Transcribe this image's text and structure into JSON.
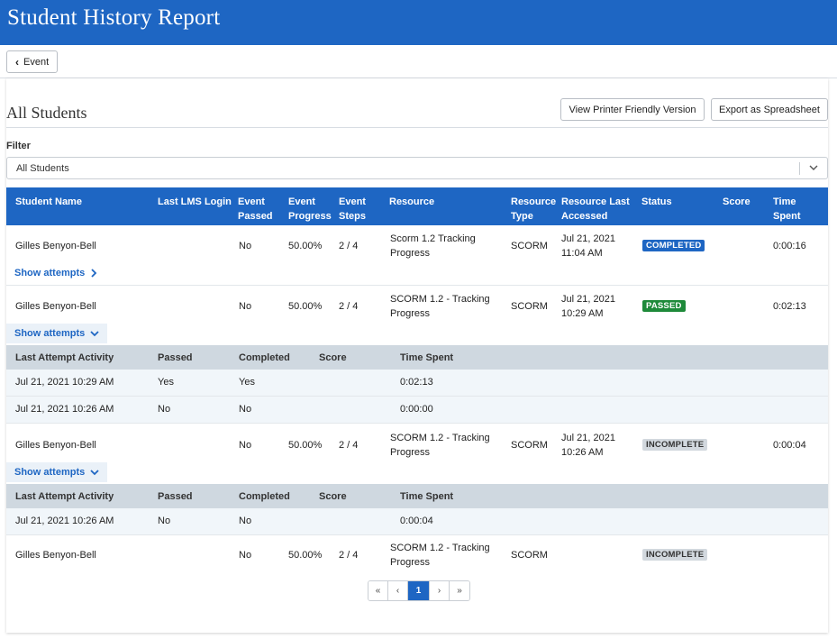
{
  "header": {
    "title": "Student History Report"
  },
  "toolbar": {
    "back_label": "Event"
  },
  "section": {
    "title": "All Students",
    "print_label": "View Printer Friendly Version",
    "export_label": "Export as Spreadsheet"
  },
  "filter": {
    "label": "Filter",
    "value": "All Students"
  },
  "table": {
    "headers": {
      "student_name": "Student Name",
      "last_login": "Last LMS Login",
      "event_passed_1": "Event",
      "event_passed_2": "Passed",
      "event_progress_1": "Event",
      "event_progress_2": "Progress",
      "event_steps_1": "Event",
      "event_steps_2": "Steps",
      "resource": "Resource",
      "resource_type_1": "Resource",
      "resource_type_2": "Type",
      "resource_last_1": "Resource Last",
      "resource_last_2": "Accessed",
      "status": "Status",
      "score": "Score",
      "time_spent_1": "Time",
      "time_spent_2": "Spent"
    },
    "rows": [
      {
        "student": "Gilles Benyon-Bell",
        "last_login": "",
        "passed": "No",
        "progress": "50.00%",
        "steps": "2 / 4",
        "resource_1": "Scorm 1.2 Tracking",
        "resource_2": "Progress",
        "type": "SCORM",
        "accessed_1": "Jul 21, 2021",
        "accessed_2": "11:04 AM",
        "status": "COMPLETED",
        "score": "",
        "time": "0:00:16",
        "attempts_label": "Show attempts"
      },
      {
        "student": "Gilles Benyon-Bell",
        "last_login": "",
        "passed": "No",
        "progress": "50.00%",
        "steps": "2 / 4",
        "resource_1": "SCORM 1.2 - Tracking",
        "resource_2": "Progress",
        "type": "SCORM",
        "accessed_1": "Jul 21, 2021",
        "accessed_2": "10:29 AM",
        "status": "PASSED",
        "score": "",
        "time": "0:02:13",
        "attempts_label": "Show attempts"
      },
      {
        "student": "Gilles Benyon-Bell",
        "last_login": "",
        "passed": "No",
        "progress": "50.00%",
        "steps": "2 / 4",
        "resource_1": "SCORM 1.2 - Tracking",
        "resource_2": "Progress",
        "type": "SCORM",
        "accessed_1": "Jul 21, 2021",
        "accessed_2": "10:26 AM",
        "status": "INCOMPLETE",
        "score": "",
        "time": "0:00:04",
        "attempts_label": "Show attempts"
      },
      {
        "student": "Gilles Benyon-Bell",
        "last_login": "",
        "passed": "No",
        "progress": "50.00%",
        "steps": "2 / 4",
        "resource_1": "SCORM 1.2 - Tracking",
        "resource_2": "Progress",
        "type": "SCORM",
        "accessed_1": "",
        "accessed_2": "",
        "status": "INCOMPLETE",
        "score": "",
        "time": ""
      }
    ],
    "attempt_headers": {
      "activity": "Last Attempt Activity",
      "passed": "Passed",
      "completed": "Completed",
      "score": "Score",
      "time": "Time Spent"
    },
    "attempts_row2": [
      {
        "activity": "Jul 21, 2021 10:29 AM",
        "passed": "Yes",
        "completed": "Yes",
        "score": "",
        "time": "0:02:13"
      },
      {
        "activity": "Jul 21, 2021 10:26 AM",
        "passed": "No",
        "completed": "No",
        "score": "",
        "time": "0:00:00"
      }
    ],
    "attempts_row3": [
      {
        "activity": "Jul 21, 2021 10:26 AM",
        "passed": "No",
        "completed": "No",
        "score": "",
        "time": "0:00:04"
      }
    ]
  },
  "pagination": {
    "first": "«",
    "prev": "‹",
    "current": "1",
    "next": "›",
    "last": "»"
  },
  "colors": {
    "primary": "#1e66c3",
    "passed": "#1e8a3a",
    "incomplete_badge": "#d2d8de",
    "subheader": "#cfd8e0"
  }
}
